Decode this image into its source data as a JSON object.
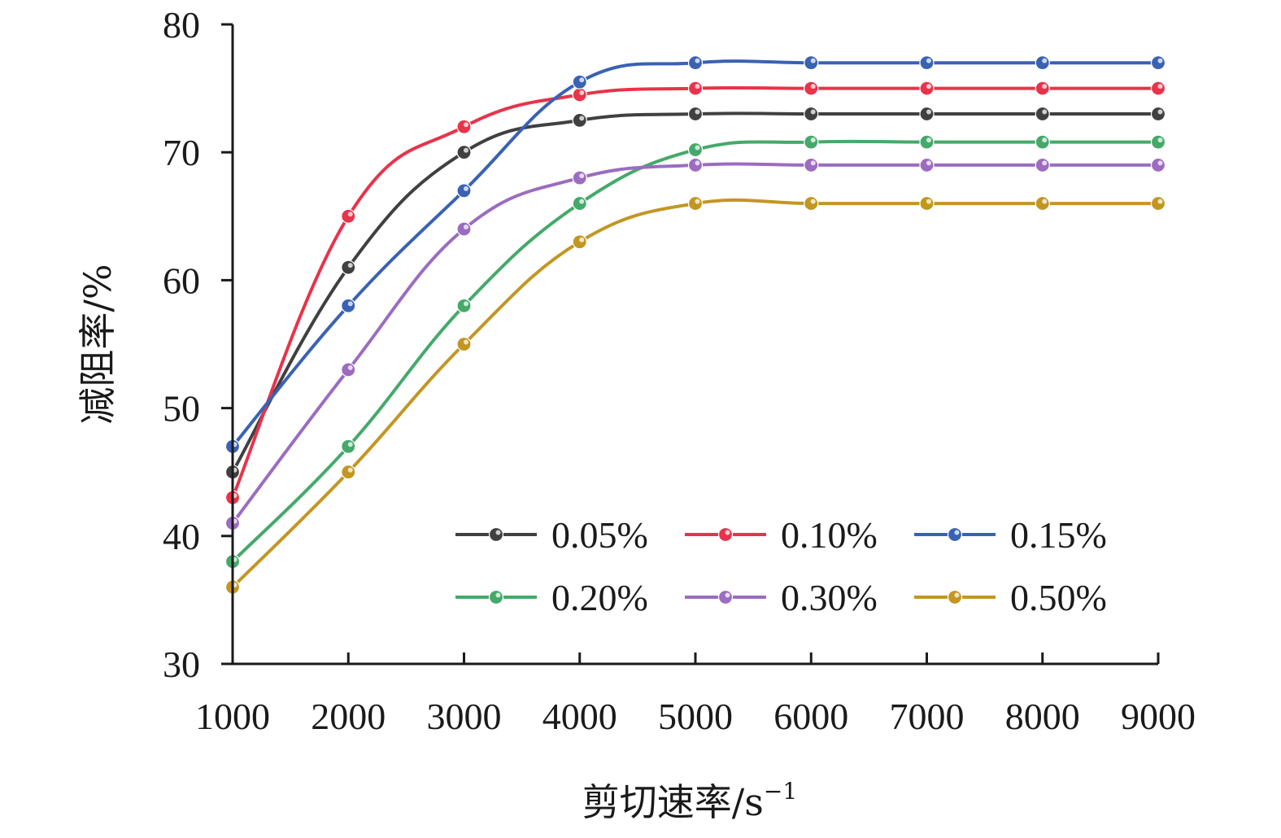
{
  "chart_data": {
    "type": "line",
    "title": "",
    "xlabel": "剪切速率/s",
    "xlabel_sup": "−1",
    "ylabel": "减阻率/%",
    "x": [
      1000,
      2000,
      3000,
      4000,
      5000,
      6000,
      7000,
      8000,
      9000
    ],
    "xlim": [
      1000,
      9000
    ],
    "ylim": [
      30,
      80
    ],
    "yticks": [
      30,
      40,
      50,
      60,
      70,
      80
    ],
    "grid": false,
    "smooth": true,
    "legend_position": "lower-right",
    "series": [
      {
        "name": "0.05%",
        "color": "#404040",
        "values": [
          45,
          61,
          70,
          72.5,
          73,
          73,
          73,
          73,
          73
        ]
      },
      {
        "name": "0.10%",
        "color": "#e8334a",
        "values": [
          43,
          65,
          72,
          74.5,
          75,
          75,
          75,
          75,
          75
        ]
      },
      {
        "name": "0.15%",
        "color": "#3a62b3",
        "values": [
          47,
          58,
          67,
          75.5,
          77,
          77,
          77,
          77,
          77
        ]
      },
      {
        "name": "0.20%",
        "color": "#45a96a",
        "values": [
          38,
          47,
          58,
          66,
          70.2,
          70.8,
          70.8,
          70.8,
          70.8
        ]
      },
      {
        "name": "0.30%",
        "color": "#9b6cc0",
        "values": [
          41,
          53,
          64,
          68,
          69,
          69,
          69,
          69,
          69
        ]
      },
      {
        "name": "0.50%",
        "color": "#c39623",
        "values": [
          36,
          45,
          55,
          63,
          66,
          66,
          66,
          66,
          66
        ]
      }
    ]
  }
}
